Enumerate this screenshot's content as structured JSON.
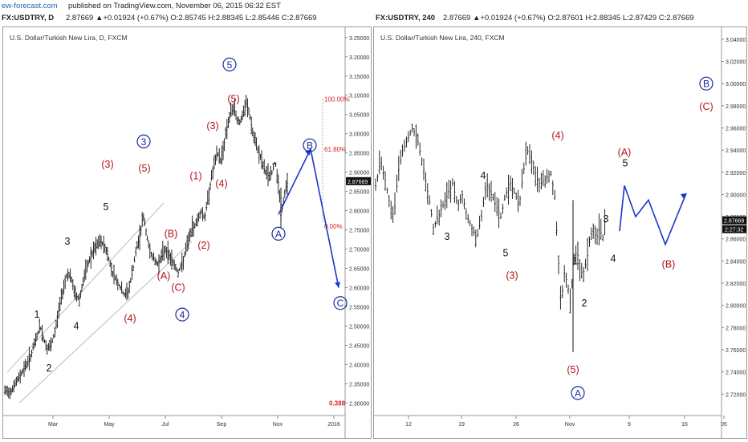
{
  "header": {
    "brand": "ew-forecast.com",
    "published": "published on TradingView.com, November 06, 2015 06:32 EST"
  },
  "left": {
    "symbol_line": "FX:USDTRY, D",
    "ohlc_line": "2.87669 ▲+0.01924 (+0.67%) O:2.85745 H:2.88345 L:2.85446 C:2.87669",
    "subtitle": "U.S. Dollar/Turkish New Lira, D, FXCM",
    "price_label": "2.87669"
  },
  "right": {
    "symbol_line": "FX:USDTRY, 240",
    "ohlc_line": "2.87669 ▲+0.01924 (+0.67%) O:2.87601 H:2.88345 L:2.87429 C:2.87669",
    "subtitle": "U.S. Dollar/Turkish New Lira, 240, FXCM",
    "price_label": "2.87669",
    "price_label2": "2:27:32"
  },
  "colors": {
    "bull": "#1b9a3c",
    "brand": "#1e63b3",
    "wave_red": "#b0151c",
    "wave_blue": "#1b2a9e",
    "wave_black": "#111111",
    "fib": "#d0282a"
  },
  "chart_data": [
    {
      "type": "bar",
      "title": "U.S. Dollar/Turkish New Lira, D, FXCM",
      "x_ticks": [
        "Mar",
        "May",
        "Jul",
        "Sep",
        "Nov",
        "2016"
      ],
      "y_ticks": [
        "3.25000",
        "3.20000",
        "3.15000",
        "3.10000",
        "3.05000",
        "3.00000",
        "2.95000",
        "2.90000",
        "2.85000",
        "2.80000",
        "2.75000",
        "2.70000",
        "2.65000",
        "2.60000",
        "2.55000",
        "2.50000",
        "2.45000",
        "2.40000",
        "2.35000",
        "2.30000"
      ],
      "ylim": [
        2.28,
        3.26
      ],
      "last_price": 2.87669,
      "price_path": [
        [
          0,
          2.33
        ],
        [
          9,
          2.33
        ],
        [
          18,
          2.36
        ],
        [
          26,
          2.39
        ],
        [
          34,
          2.42
        ],
        [
          40,
          2.46
        ],
        [
          46,
          2.5
        ],
        [
          50,
          2.47
        ],
        [
          55,
          2.44
        ],
        [
          60,
          2.45
        ],
        [
          65,
          2.49
        ],
        [
          70,
          2.55
        ],
        [
          75,
          2.6
        ],
        [
          80,
          2.64
        ],
        [
          85,
          2.62
        ],
        [
          90,
          2.58
        ],
        [
          95,
          2.57
        ],
        [
          100,
          2.62
        ],
        [
          107,
          2.67
        ],
        [
          114,
          2.7
        ],
        [
          120,
          2.72
        ],
        [
          126,
          2.71
        ],
        [
          131,
          2.68
        ],
        [
          136,
          2.64
        ],
        [
          141,
          2.62
        ],
        [
          146,
          2.6
        ],
        [
          151,
          2.58
        ],
        [
          156,
          2.59
        ],
        [
          161,
          2.64
        ],
        [
          166,
          2.7
        ],
        [
          171,
          2.74
        ],
        [
          174,
          2.79
        ],
        [
          177,
          2.76
        ],
        [
          181,
          2.71
        ],
        [
          186,
          2.68
        ],
        [
          192,
          2.66
        ],
        [
          197,
          2.68
        ],
        [
          202,
          2.7
        ],
        [
          208,
          2.68
        ],
        [
          213,
          2.66
        ],
        [
          218,
          2.64
        ],
        [
          223,
          2.66
        ],
        [
          228,
          2.7
        ],
        [
          233,
          2.74
        ],
        [
          238,
          2.76
        ],
        [
          243,
          2.78
        ],
        [
          247,
          2.8
        ],
        [
          251,
          2.78
        ],
        [
          255,
          2.83
        ],
        [
          259,
          2.88
        ],
        [
          263,
          2.92
        ],
        [
          267,
          2.95
        ],
        [
          271,
          2.93
        ],
        [
          275,
          2.97
        ],
        [
          279,
          3.02
        ],
        [
          283,
          3.05
        ],
        [
          287,
          3.07
        ],
        [
          291,
          3.04
        ],
        [
          295,
          3.03
        ],
        [
          299,
          3.05
        ],
        [
          303,
          3.08
        ],
        [
          307,
          3.05
        ],
        [
          311,
          3.0
        ],
        [
          315,
          2.97
        ],
        [
          319,
          2.95
        ],
        [
          323,
          2.92
        ],
        [
          327,
          2.9
        ],
        [
          331,
          2.89
        ],
        [
          335,
          2.9
        ],
        [
          339,
          2.93
        ],
        [
          343,
          2.87
        ],
        [
          346,
          2.79
        ],
        [
          349,
          2.82
        ],
        [
          352,
          2.86
        ],
        [
          355,
          2.877
        ]
      ],
      "fib_levels": [
        {
          "label": "100.00%",
          "value": 3.09
        },
        {
          "label": "61.80%",
          "value": 2.96
        },
        {
          "label": "0.00%",
          "value": 2.76
        },
        {
          "label": "0.388",
          "value": 2.3
        }
      ],
      "wave_labels": [
        {
          "text": "1",
          "x": 42,
          "y": 2.53,
          "style": "black"
        },
        {
          "text": "2",
          "x": 57,
          "y": 2.39,
          "style": "black"
        },
        {
          "text": "3",
          "x": 80,
          "y": 2.72,
          "style": "black"
        },
        {
          "text": "4",
          "x": 91,
          "y": 2.5,
          "style": "black"
        },
        {
          "text": "5",
          "x": 128,
          "y": 2.81,
          "style": "black"
        },
        {
          "text": "(3)",
          "x": 130,
          "y": 2.92,
          "style": "red"
        },
        {
          "text": "(4)",
          "x": 158,
          "y": 2.52,
          "style": "red"
        },
        {
          "text": "(5)",
          "x": 176,
          "y": 2.91,
          "style": "red"
        },
        {
          "text": "(A)",
          "x": 200,
          "y": 2.63,
          "style": "red"
        },
        {
          "text": "(B)",
          "x": 209,
          "y": 2.74,
          "style": "red"
        },
        {
          "text": "(C)",
          "x": 218,
          "y": 2.6,
          "style": "red"
        },
        {
          "text": "(1)",
          "x": 240,
          "y": 2.89,
          "style": "red"
        },
        {
          "text": "(2)",
          "x": 250,
          "y": 2.71,
          "style": "red"
        },
        {
          "text": "(3)",
          "x": 261,
          "y": 3.02,
          "style": "red"
        },
        {
          "text": "(4)",
          "x": 272,
          "y": 2.87,
          "style": "red"
        },
        {
          "text": "(5)",
          "x": 287,
          "y": 3.09,
          "style": "red"
        },
        {
          "text": "3",
          "x": 175,
          "y": 2.98,
          "style": "blue"
        },
        {
          "text": "4",
          "x": 223,
          "y": 2.53,
          "style": "blue"
        },
        {
          "text": "5",
          "x": 282,
          "y": 3.18,
          "style": "blue"
        },
        {
          "text": "A",
          "x": 343,
          "y": 2.74,
          "style": "blue"
        },
        {
          "text": "B",
          "x": 382,
          "y": 2.97,
          "style": "blue"
        },
        {
          "text": "C",
          "x": 420,
          "y": 2.56,
          "style": "blue"
        }
      ],
      "projection": [
        [
          343,
          2.79
        ],
        [
          383,
          2.96
        ],
        [
          418,
          2.6
        ]
      ],
      "channel": [
        {
          "from": [
            5,
            2.38
          ],
          "to": [
            200,
            2.82
          ]
        },
        {
          "from": [
            20,
            2.3
          ],
          "to": [
            235,
            2.72
          ]
        }
      ]
    },
    {
      "type": "bar",
      "title": "U.S. Dollar/Turkish New Lira, 240, FXCM",
      "x_ticks": [
        "12",
        "19",
        "26",
        "Nov",
        "9",
        "16",
        "05"
      ],
      "y_ticks": [
        "3.04000",
        "3.02000",
        "3.00000",
        "2.98000",
        "2.96000",
        "2.94000",
        "2.92000",
        "2.90000",
        "2.88000",
        "2.86000",
        "2.84000",
        "2.82000",
        "2.80000",
        "2.78000",
        "2.76000",
        "2.74000",
        "2.72000"
      ],
      "ylim": [
        2.705,
        3.045
      ],
      "last_price": 2.87669,
      "price_path": [
        [
          0,
          2.9
        ],
        [
          8,
          2.93
        ],
        [
          15,
          2.91
        ],
        [
          20,
          2.89
        ],
        [
          25,
          2.88
        ],
        [
          30,
          2.92
        ],
        [
          36,
          2.94
        ],
        [
          42,
          2.95
        ],
        [
          48,
          2.96
        ],
        [
          54,
          2.95
        ],
        [
          60,
          2.93
        ],
        [
          65,
          2.91
        ],
        [
          70,
          2.89
        ],
        [
          74,
          2.87
        ],
        [
          80,
          2.88
        ],
        [
          86,
          2.89
        ],
        [
          92,
          2.9
        ],
        [
          98,
          2.91
        ],
        [
          104,
          2.89
        ],
        [
          110,
          2.9
        ],
        [
          116,
          2.88
        ],
        [
          122,
          2.87
        ],
        [
          128,
          2.86
        ],
        [
          134,
          2.88
        ],
        [
          140,
          2.91
        ],
        [
          146,
          2.9
        ],
        [
          152,
          2.89
        ],
        [
          158,
          2.88
        ],
        [
          164,
          2.9
        ],
        [
          170,
          2.91
        ],
        [
          176,
          2.9
        ],
        [
          181,
          2.89
        ],
        [
          186,
          2.92
        ],
        [
          191,
          2.94
        ],
        [
          196,
          2.93
        ],
        [
          201,
          2.92
        ],
        [
          205,
          2.91
        ],
        [
          209,
          2.91
        ],
        [
          220,
          2.92
        ],
        [
          225,
          2.9
        ],
        [
          229,
          2.85
        ],
        [
          233,
          2.8
        ],
        [
          237,
          2.83
        ],
        [
          241,
          2.82
        ],
        [
          245,
          2.8
        ],
        [
          249,
          2.84
        ],
        [
          253,
          2.85
        ],
        [
          257,
          2.83
        ],
        [
          261,
          2.83
        ],
        [
          265,
          2.84
        ],
        [
          269,
          2.86
        ],
        [
          273,
          2.87
        ],
        [
          277,
          2.86
        ],
        [
          281,
          2.87
        ],
        [
          285,
          2.86
        ],
        [
          288,
          2.877
        ]
      ],
      "wave_labels": [
        {
          "text": "3",
          "x": 91,
          "y": 2.862,
          "style": "black"
        },
        {
          "text": "4",
          "x": 136,
          "y": 2.917,
          "style": "black"
        },
        {
          "text": "5",
          "x": 164,
          "y": 2.847,
          "style": "black"
        },
        {
          "text": "(3)",
          "x": 172,
          "y": 2.827,
          "style": "red"
        },
        {
          "text": "(4)",
          "x": 229,
          "y": 2.953,
          "style": "red"
        },
        {
          "text": "(5)",
          "x": 248,
          "y": 2.742,
          "style": "red"
        },
        {
          "text": "A",
          "x": 254,
          "y": 2.721,
          "style": "blue"
        },
        {
          "text": "1",
          "x": 251,
          "y": 2.84,
          "style": "black"
        },
        {
          "text": "2",
          "x": 262,
          "y": 2.802,
          "style": "black"
        },
        {
          "text": "3",
          "x": 289,
          "y": 2.878,
          "style": "black"
        },
        {
          "text": "4",
          "x": 298,
          "y": 2.842,
          "style": "black"
        },
        {
          "text": "5",
          "x": 313,
          "y": 2.928,
          "style": "black"
        },
        {
          "text": "(A)",
          "x": 312,
          "y": 2.938,
          "style": "red"
        },
        {
          "text": "(B)",
          "x": 367,
          "y": 2.837,
          "style": "red"
        },
        {
          "text": "(C)",
          "x": 414,
          "y": 2.979,
          "style": "red"
        },
        {
          "text": "B",
          "x": 414,
          "y": 3.0,
          "style": "blue"
        }
      ],
      "projection": [
        [
          306,
          2.867
        ],
        [
          312,
          2.908
        ],
        [
          326,
          2.88
        ],
        [
          342,
          2.895
        ],
        [
          363,
          2.855
        ],
        [
          389,
          2.901
        ]
      ]
    }
  ]
}
